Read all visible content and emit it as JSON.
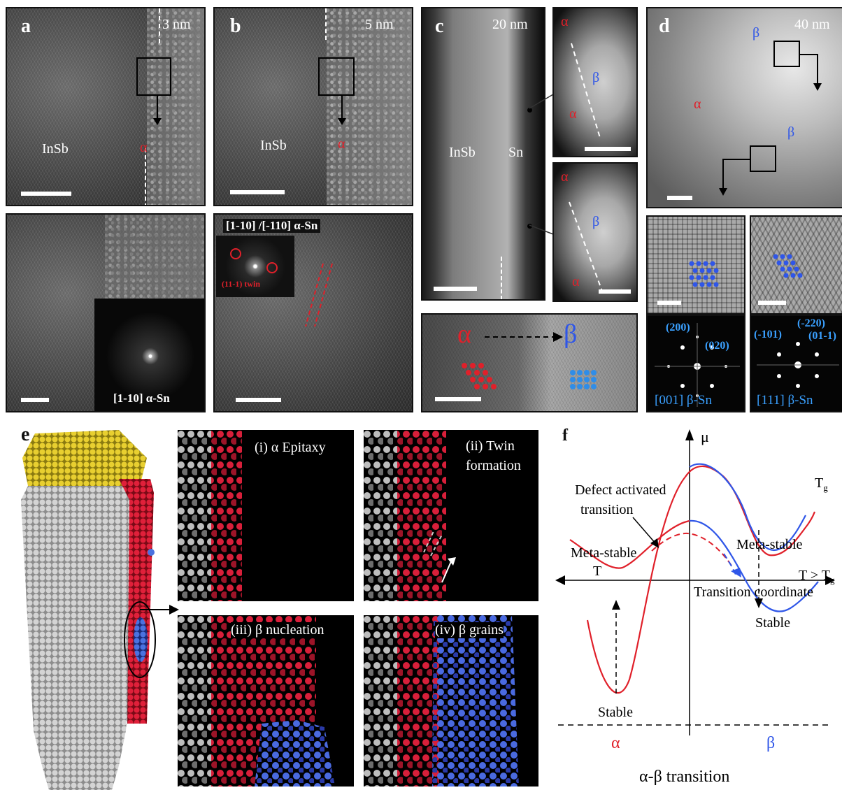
{
  "panel_a": {
    "letter": "a",
    "scale": "3 nm",
    "material": "InSb",
    "phase": "α",
    "fft_label": "[1-10] α-Sn"
  },
  "panel_b": {
    "letter": "b",
    "scale": "5 nm",
    "material": "InSb",
    "phase": "α",
    "zone_label": "[1-10] /[-110] α-Sn",
    "twin_label": "(11-1) twin"
  },
  "panel_c": {
    "letter": "c",
    "scale": "20 nm",
    "material_left": "InSb",
    "material_right": "Sn",
    "top_inset_alpha_top": "α",
    "top_inset_beta": "β",
    "top_inset_alpha_bottom": "α",
    "bottom_inset_alpha_top": "α",
    "bottom_inset_beta": "β",
    "bottom_inset_alpha_bottom": "α",
    "transition_from": "α",
    "transition_to": "β"
  },
  "panel_d": {
    "letter": "d",
    "scale": "40 nm",
    "beta_top": "β",
    "alpha": "α",
    "beta_right": "β",
    "fft_left_spots": [
      "(200)",
      "(020)"
    ],
    "fft_left_zone": "[001] β-Sn",
    "fft_right_spots": [
      "(-101)",
      "(-220)",
      "(01-1)"
    ],
    "fft_right_zone": "[111] β-Sn"
  },
  "panel_e": {
    "letter": "e",
    "steps": [
      "(i) α Epitaxy",
      "(ii) Twin",
      "formation",
      "(iii) β nucleation",
      "(iv) β grains"
    ]
  },
  "panel_f": {
    "letter": "f",
    "y_axis": "μ",
    "x_axis": "Transition coordinate",
    "t_axis": "T",
    "defect_line1": "Defect activated",
    "defect_line2": "transition",
    "meta_left": "Meta-stable",
    "meta_right": "Meta-stable",
    "stable_left": "Stable",
    "stable_right": "Stable",
    "tg": "T",
    "tg_sub": "g",
    "tgt": "T > T",
    "tgt_sub": "g",
    "alpha": "α",
    "beta": "β",
    "caption": "α-β transition"
  },
  "colors": {
    "alpha": "#e0202a",
    "beta": "#2f56e8",
    "fft_label": "#3aa0ff"
  }
}
